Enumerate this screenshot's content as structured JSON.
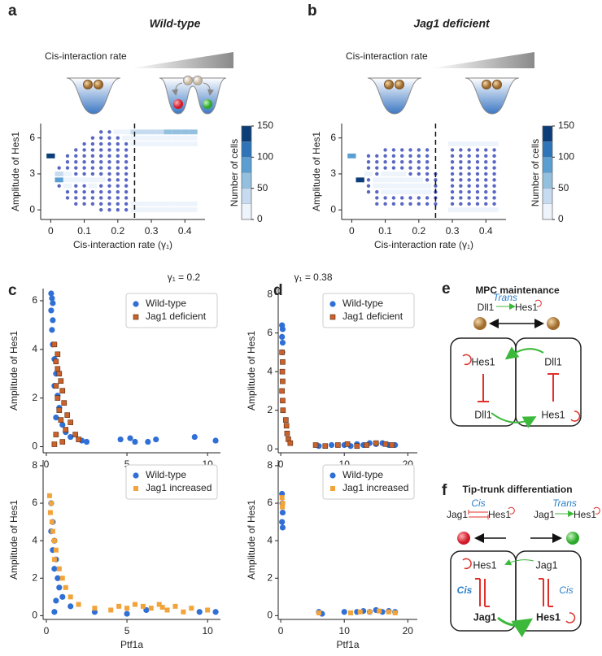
{
  "panels": [
    "a",
    "b",
    "c",
    "d",
    "e",
    "f"
  ],
  "illustration": {
    "a": "Cis-interaction rate",
    "b": "Cis-interaction rate"
  },
  "chart_data": [
    {
      "type": "heatmap",
      "title": "Wild-type",
      "xlabel": "Cis-interaction rate (γ₁)",
      "ylabel": "Amplitude of Hes1",
      "x": [
        0,
        0.025,
        0.05,
        0.075,
        0.1,
        0.125,
        0.15,
        0.175,
        0.2,
        0.225,
        0.25,
        0.275,
        0.3,
        0.325,
        0.35,
        0.375,
        0.4,
        0.425
      ],
      "y": [
        0,
        0.5,
        1,
        1.5,
        2,
        2.5,
        3,
        3.5,
        4,
        4.5,
        5,
        5.5,
        6,
        6.5
      ],
      "values": [
        [
          null,
          null,
          null,
          null,
          null,
          null,
          1,
          1,
          1,
          1,
          20,
          20,
          20,
          20,
          20,
          20,
          20,
          20
        ],
        [
          null,
          null,
          null,
          1,
          1,
          1,
          1,
          1,
          1,
          1,
          5,
          5,
          5,
          5,
          5,
          5,
          5,
          5
        ],
        [
          null,
          null,
          1,
          1,
          1,
          1,
          1,
          1,
          1,
          1,
          null,
          null,
          null,
          null,
          null,
          null,
          null,
          null
        ],
        [
          null,
          null,
          1,
          1,
          1,
          1,
          1,
          1,
          1,
          1,
          null,
          null,
          null,
          null,
          null,
          null,
          null,
          null
        ],
        [
          null,
          1,
          5,
          1,
          1,
          10,
          1,
          1,
          1,
          1,
          null,
          null,
          null,
          null,
          null,
          null,
          null,
          null
        ],
        [
          null,
          80,
          10,
          5,
          5,
          10,
          5,
          1,
          1,
          1,
          null,
          null,
          null,
          null,
          null,
          null,
          null,
          null
        ],
        [
          null,
          40,
          5,
          1,
          1,
          1,
          1,
          1,
          1,
          1,
          null,
          null,
          null,
          null,
          null,
          null,
          null,
          null
        ],
        [
          null,
          1,
          1,
          1,
          1,
          1,
          1,
          1,
          1,
          1,
          null,
          null,
          null,
          null,
          null,
          null,
          null,
          null
        ],
        [
          null,
          null,
          1,
          1,
          1,
          1,
          1,
          1,
          1,
          1,
          null,
          null,
          null,
          null,
          null,
          null,
          null,
          null
        ],
        [
          150,
          null,
          1,
          1,
          1,
          1,
          1,
          1,
          1,
          1,
          null,
          null,
          null,
          null,
          null,
          null,
          null,
          null
        ],
        [
          null,
          null,
          null,
          1,
          1,
          1,
          1,
          1,
          1,
          1,
          null,
          null,
          null,
          null,
          null,
          null,
          null,
          null
        ],
        [
          null,
          null,
          null,
          null,
          1,
          1,
          1,
          1,
          1,
          1,
          5,
          5,
          5,
          5,
          5,
          5,
          5,
          5
        ],
        [
          null,
          null,
          null,
          null,
          null,
          1,
          1,
          1,
          1,
          5,
          20,
          20,
          20,
          20,
          20,
          20,
          20,
          20
        ],
        [
          null,
          null,
          null,
          null,
          null,
          null,
          1,
          1,
          5,
          10,
          30,
          40,
          40,
          45,
          50,
          60,
          70,
          60
        ]
      ],
      "xlim": [
        -0.03,
        0.46
      ],
      "ylim": [
        -0.8,
        7.2
      ],
      "xticks": [
        0,
        0.1,
        0.2,
        0.3,
        0.4
      ],
      "yticks": [
        0,
        3,
        6
      ],
      "vline": 0.25,
      "point_color": "#5a68c4",
      "colormap": [
        "#eef4fb",
        "#c6dbef",
        "#94c0e0",
        "#5b9fd2",
        "#2e74b8",
        "#0b3e78"
      ],
      "colorbar": {
        "label": "Number of cells",
        "lim": [
          0,
          150
        ],
        "ticks": [
          0,
          50,
          100,
          150
        ]
      }
    },
    {
      "type": "heatmap",
      "title": "Jag1 deficient",
      "xlabel": "Cis-interaction rate (γ₁)",
      "ylabel": "Amplitude of Hes1",
      "x": [
        0,
        0.025,
        0.05,
        0.075,
        0.1,
        0.125,
        0.15,
        0.175,
        0.2,
        0.225,
        0.25,
        0.275,
        0.3,
        0.325,
        0.35,
        0.375,
        0.4,
        0.425
      ],
      "y": [
        0,
        0.5,
        1,
        1.5,
        2,
        2.5,
        3,
        3.5,
        4,
        4.5,
        5,
        5.5,
        6,
        6.5
      ],
      "values": [
        [
          null,
          null,
          null,
          null,
          null,
          null,
          null,
          null,
          null,
          null,
          null,
          null,
          20,
          20,
          20,
          20,
          20,
          20
        ],
        [
          null,
          null,
          null,
          1,
          1,
          1,
          1,
          1,
          1,
          1,
          1,
          null,
          1,
          1,
          1,
          1,
          1,
          1
        ],
        [
          null,
          null,
          null,
          1,
          1,
          1,
          1,
          1,
          1,
          1,
          1,
          null,
          1,
          1,
          1,
          1,
          1,
          1
        ],
        [
          null,
          null,
          1,
          1,
          10,
          10,
          15,
          10,
          10,
          5,
          1,
          null,
          1,
          1,
          1,
          1,
          1,
          1
        ],
        [
          null,
          null,
          1,
          5,
          10,
          20,
          20,
          15,
          10,
          5,
          1,
          null,
          1,
          1,
          1,
          1,
          1,
          1
        ],
        [
          null,
          150,
          1,
          5,
          10,
          15,
          15,
          10,
          5,
          1,
          1,
          null,
          1,
          1,
          1,
          1,
          1,
          1
        ],
        [
          null,
          null,
          10,
          1,
          5,
          5,
          5,
          1,
          1,
          1,
          1,
          null,
          1,
          1,
          1,
          1,
          1,
          1
        ],
        [
          null,
          null,
          1,
          1,
          1,
          1,
          1,
          1,
          1,
          1,
          null,
          null,
          1,
          1,
          1,
          1,
          1,
          1
        ],
        [
          null,
          null,
          1,
          1,
          1,
          1,
          1,
          1,
          1,
          1,
          null,
          null,
          1,
          1,
          1,
          1,
          1,
          1
        ],
        [
          80,
          null,
          1,
          1,
          1,
          1,
          1,
          1,
          1,
          1,
          null,
          null,
          1,
          1,
          1,
          1,
          1,
          1
        ],
        [
          null,
          null,
          null,
          null,
          1,
          1,
          1,
          1,
          1,
          1,
          null,
          null,
          1,
          1,
          1,
          1,
          1,
          1
        ],
        [
          null,
          null,
          null,
          null,
          null,
          null,
          null,
          null,
          null,
          null,
          null,
          null,
          5,
          5,
          5,
          5,
          5,
          5
        ],
        [
          null,
          null,
          null,
          null,
          null,
          null,
          null,
          null,
          null,
          null,
          null,
          null,
          null,
          null,
          null,
          null,
          null,
          null
        ],
        [
          null,
          null,
          null,
          null,
          null,
          null,
          null,
          null,
          null,
          null,
          null,
          null,
          null,
          null,
          null,
          null,
          null,
          null
        ]
      ],
      "xlim": [
        -0.03,
        0.46
      ],
      "ylim": [
        -0.8,
        7.2
      ],
      "xticks": [
        0,
        0.1,
        0.2,
        0.3,
        0.4
      ],
      "yticks": [
        0,
        3,
        6
      ],
      "vline": 0.25,
      "point_color": "#5a68c4",
      "colormap": [
        "#eef4fb",
        "#c6dbef",
        "#94c0e0",
        "#5b9fd2",
        "#2e74b8",
        "#0b3e78"
      ],
      "colorbar": {
        "label": "Number of cells",
        "lim": [
          0,
          150
        ],
        "ticks": [
          0,
          50,
          100,
          150
        ]
      }
    },
    {
      "type": "scatter",
      "title": "γ₁ = 0.2",
      "ylabel": "Amplitude of Hes1",
      "xlim": [
        -0.2,
        10.8
      ],
      "ylim": [
        -0.25,
        6.5
      ],
      "xticks": [
        0,
        5,
        10
      ],
      "yticks": [
        0,
        2,
        4,
        6
      ],
      "legend": "upper right",
      "series": [
        {
          "name": "Wild-type",
          "color": "#2f6fd6",
          "marker": "circle",
          "x": [
            0.3,
            0.35,
            0.4,
            0.3,
            0.4,
            0.35,
            0.4,
            0.5,
            0.6,
            0.5,
            0.7,
            0.8,
            0.6,
            1,
            1.2,
            1.5,
            2.2,
            4.6,
            5.2,
            5.5,
            6.3,
            6.8,
            9.2,
            10.5,
            2.5
          ],
          "values": [
            6.3,
            6.1,
            5.9,
            5.6,
            5.2,
            4.8,
            4.2,
            3.6,
            3,
            2.5,
            2.1,
            1.6,
            1.2,
            0.9,
            0.6,
            0.4,
            0.25,
            0.3,
            0.35,
            0.2,
            0.2,
            0.3,
            0.4,
            0.25,
            0.2
          ]
        },
        {
          "name": "Jag1 deficient",
          "color": "#c9622b",
          "edge": "#5a2a10",
          "marker": "square",
          "x": [
            0.5,
            0.6,
            0.7,
            0.8,
            0.9,
            0.6,
            1,
            0.7,
            1.1,
            0.8,
            1.3,
            0.9,
            1.5,
            1.2,
            0.6,
            1.8,
            2,
            1,
            0.5,
            0.7
          ],
          "values": [
            4.2,
            3.5,
            3.2,
            3,
            2.7,
            2.5,
            2.3,
            2,
            1.8,
            1.5,
            1.3,
            1.1,
            1,
            0.7,
            0.5,
            0.5,
            0.3,
            0.2,
            0.1,
            3.8
          ]
        }
      ]
    },
    {
      "type": "scatter",
      "ylabel": "Amplitude of Hes1",
      "xlabel": "Ptf1a",
      "xlim": [
        -0.2,
        10.8
      ],
      "ylim": [
        -0.2,
        8.3
      ],
      "xticks": [
        0,
        5,
        10
      ],
      "yticks": [
        0,
        2,
        4,
        6,
        8
      ],
      "legend": "upper right",
      "series": [
        {
          "name": "Wild-type",
          "color": "#2f6fd6",
          "marker": "circle",
          "x": [
            0.3,
            0.4,
            0.3,
            0.5,
            0.4,
            0.6,
            0.5,
            0.7,
            0.8,
            1,
            0.6,
            1.5,
            0.5,
            6.2,
            9.5,
            10.5,
            5,
            3
          ],
          "values": [
            6,
            5,
            4.5,
            4,
            3.5,
            3,
            2.5,
            2,
            1.5,
            1,
            0.8,
            0.5,
            0.2,
            0.3,
            0.2,
            0.2,
            0.1,
            0.2
          ]
        },
        {
          "name": "Jag1 increased",
          "color": "#f2a33a",
          "marker": "square",
          "x": [
            0.2,
            0.3,
            0.25,
            0.35,
            0.4,
            0.5,
            0.6,
            0.5,
            0.8,
            1,
            1.2,
            1.5,
            2,
            3,
            4,
            5,
            5.5,
            6,
            6.5,
            7,
            7.5,
            8,
            9,
            10,
            4.5,
            7.2,
            8.5
          ],
          "values": [
            6.4,
            6,
            5.5,
            5,
            4.5,
            4,
            3.5,
            3,
            2.5,
            2,
            1.5,
            1,
            0.6,
            0.4,
            0.3,
            0.4,
            0.6,
            0.5,
            0.4,
            0.6,
            0.3,
            0.5,
            0.4,
            0.3,
            0.5,
            0.45,
            0.2
          ]
        }
      ]
    },
    {
      "type": "scatter",
      "title": "γ₁ = 0.38",
      "ylabel": "Amplitude of Hes1",
      "xlim": [
        -0.4,
        21.5
      ],
      "ylim": [
        -0.2,
        8.3
      ],
      "xticks": [
        0,
        10,
        20
      ],
      "yticks": [
        0,
        2,
        4,
        6,
        8
      ],
      "legend": "upper right",
      "series": [
        {
          "name": "Wild-type",
          "color": "#2f6fd6",
          "marker": "circle",
          "x": [
            0.2,
            0.3,
            0.2,
            0.3,
            0.25,
            6,
            8,
            10,
            12,
            13,
            14,
            15,
            16,
            17,
            18,
            11
          ],
          "values": [
            6.4,
            6.2,
            5.8,
            5.5,
            5,
            0.15,
            0.2,
            0.2,
            0.25,
            0.2,
            0.3,
            0.25,
            0.3,
            0.2,
            0.2,
            0.15
          ]
        },
        {
          "name": "Jag1 deficient",
          "color": "#c9622b",
          "edge": "#5a2a10",
          "marker": "square",
          "x": [
            0.2,
            0.3,
            0.25,
            0.3,
            0.2,
            0.3,
            0.35,
            0.8,
            0.9,
            1,
            1.2,
            1.5,
            5.5,
            7,
            9,
            10.5,
            12,
            13.5,
            15,
            16.5,
            17.5
          ],
          "values": [
            5,
            4.5,
            4,
            3.5,
            3,
            2.5,
            2,
            1.5,
            1.2,
            0.8,
            0.5,
            0.3,
            0.2,
            0.15,
            0.2,
            0.25,
            0.15,
            0.2,
            0.3,
            0.25,
            0.2
          ]
        }
      ]
    },
    {
      "type": "scatter",
      "ylabel": "Amplitude of Hes1",
      "xlabel": "Ptf1a",
      "xlim": [
        -0.4,
        21.5
      ],
      "ylim": [
        -0.2,
        8.3
      ],
      "xticks": [
        0,
        10,
        20
      ],
      "yticks": [
        0,
        2,
        4,
        6,
        8
      ],
      "legend": "upper right",
      "series": [
        {
          "name": "Wild-type",
          "color": "#2f6fd6",
          "marker": "circle",
          "x": [
            0.2,
            0.25,
            0.3,
            0.2,
            0.3,
            6,
            6.5,
            10,
            12,
            13,
            14,
            15,
            16,
            17,
            18
          ],
          "values": [
            6.5,
            6,
            5.5,
            5,
            4.7,
            0.2,
            0.1,
            0.2,
            0.2,
            0.25,
            0.2,
            0.3,
            0.2,
            0.25,
            0.2
          ]
        },
        {
          "name": "Jag1 increased",
          "color": "#f2a33a",
          "marker": "square",
          "x": [
            0.2,
            0.3,
            0.25,
            6,
            11,
            12.5,
            14,
            15.5,
            17,
            18
          ],
          "values": [
            6.3,
            6,
            5.8,
            0.15,
            0.15,
            0.2,
            0.2,
            0.25,
            0.2,
            0.15
          ]
        }
      ]
    }
  ],
  "diagrams": {
    "e": {
      "title": "MPC maintenance",
      "schema": [
        "Dll1",
        "Trans",
        "Hes1"
      ],
      "left_cell": [
        "Hes1",
        "Dll1"
      ],
      "right_cell": [
        "Dll1",
        "Hes1"
      ]
    },
    "f": {
      "title": "Tip-trunk differentiation",
      "schema_left": [
        "Jag1",
        "Cis",
        "Hes1"
      ],
      "schema_right": [
        "Jag1",
        "Trans",
        "Hes1"
      ],
      "left_cell": [
        "Hes1",
        "Cis",
        "Jag1"
      ],
      "right_cell": [
        "Jag1",
        "Cis",
        "Hes1"
      ]
    }
  }
}
